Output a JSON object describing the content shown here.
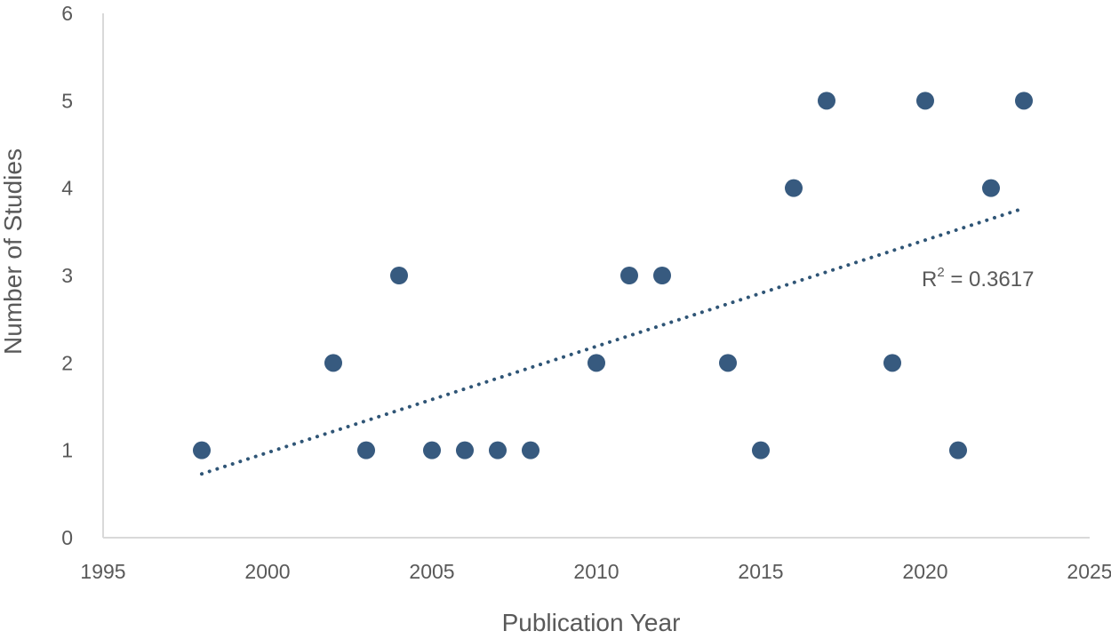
{
  "chart_data": {
    "type": "scatter",
    "xlabel": "Publication Year",
    "ylabel": "Number of Studies",
    "xlim": [
      1995,
      2025
    ],
    "ylim": [
      0,
      6
    ],
    "xticks": [
      1995,
      2000,
      2005,
      2010,
      2015,
      2020,
      2025
    ],
    "yticks": [
      0,
      1,
      2,
      3,
      4,
      5,
      6
    ],
    "grid": false,
    "series": [
      {
        "points": [
          {
            "x": 1998,
            "y": 1
          },
          {
            "x": 2002,
            "y": 2
          },
          {
            "x": 2003,
            "y": 1
          },
          {
            "x": 2004,
            "y": 3
          },
          {
            "x": 2005,
            "y": 1
          },
          {
            "x": 2006,
            "y": 1
          },
          {
            "x": 2007,
            "y": 1
          },
          {
            "x": 2008,
            "y": 1
          },
          {
            "x": 2010,
            "y": 2
          },
          {
            "x": 2011,
            "y": 3
          },
          {
            "x": 2012,
            "y": 3
          },
          {
            "x": 2014,
            "y": 2
          },
          {
            "x": 2015,
            "y": 1
          },
          {
            "x": 2016,
            "y": 4
          },
          {
            "x": 2017,
            "y": 5
          },
          {
            "x": 2019,
            "y": 2
          },
          {
            "x": 2020,
            "y": 5
          },
          {
            "x": 2021,
            "y": 1
          },
          {
            "x": 2022,
            "y": 4
          },
          {
            "x": 2023,
            "y": 5
          }
        ]
      }
    ],
    "trendline": {
      "type": "linear",
      "style": "dotted",
      "start": {
        "x": 1998,
        "y": 0.73
      },
      "end": {
        "x": 2023,
        "y": 3.77
      }
    },
    "annotation": {
      "r2_prefix": "R",
      "r2_exponent": "2",
      "r2_suffix": " = 0.3617"
    },
    "colors": {
      "marker": "#375a7f",
      "trendline": "#2f5576",
      "axis": "#d9d9d9",
      "text": "#595959"
    }
  }
}
